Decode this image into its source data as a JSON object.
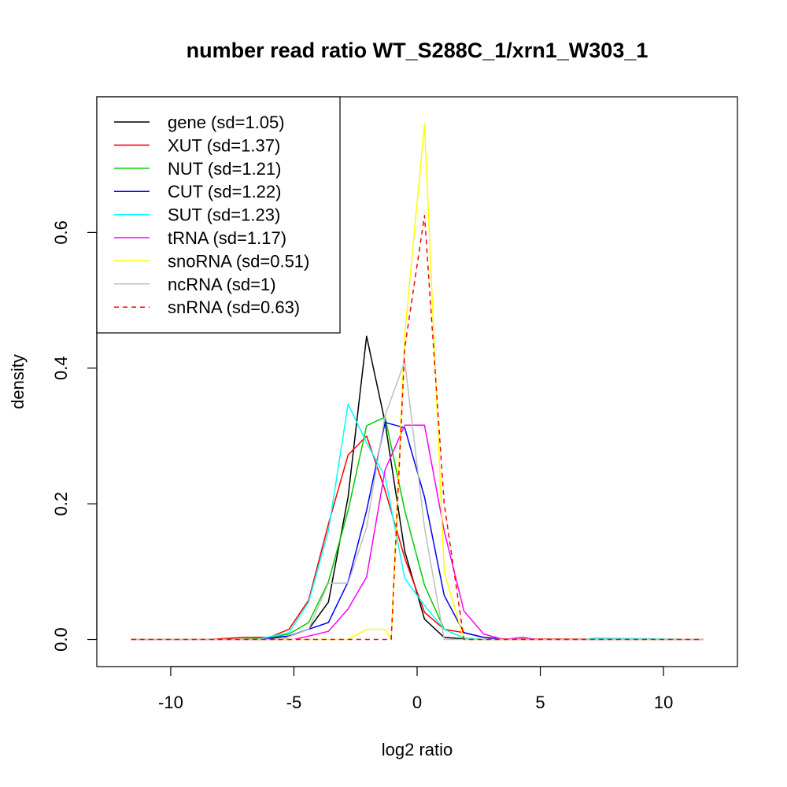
{
  "chart_data": {
    "type": "line",
    "title": "number read ratio WT_S288C_1/xrn1_W303_1",
    "xlabel": "log2 ratio",
    "ylabel": "density",
    "xlim": [
      -13,
      13
    ],
    "ylim": [
      -0.04,
      0.8
    ],
    "xticks": [
      -10,
      -5,
      0,
      5,
      10
    ],
    "xtick_labels": [
      "-10",
      "-5",
      "0",
      "5",
      "10"
    ],
    "yticks": [
      0.0,
      0.2,
      0.4,
      0.6
    ],
    "ytick_labels": [
      "0.0",
      "0.2",
      "0.4",
      "0.6"
    ],
    "grid": false,
    "legend_position": "top-left",
    "series": [
      {
        "name": "gene (sd=1.05)",
        "color": "#000000",
        "dash": "solid",
        "x": [
          -11.6,
          -9.3,
          -7.9,
          -6.3,
          -5.2,
          -4.4,
          -3.6,
          -2.8,
          -2.05,
          -1.3,
          -0.5,
          0.3,
          1.1,
          1.9,
          2.7,
          11.6
        ],
        "y": [
          0.0,
          0.0,
          0.0,
          0.0,
          0.005,
          0.015,
          0.055,
          0.21,
          0.447,
          0.32,
          0.13,
          0.03,
          0.003,
          0.001,
          0.0,
          0.0
        ]
      },
      {
        "name": "XUT (sd=1.37)",
        "color": "#ff0000",
        "dash": "solid",
        "x": [
          -11.6,
          -8.5,
          -7.0,
          -6.0,
          -5.2,
          -4.4,
          -3.6,
          -2.8,
          -2.05,
          -1.3,
          -0.5,
          0.3,
          1.1,
          1.9,
          2.7,
          3.5,
          11.6
        ],
        "y": [
          0.0,
          0.0,
          0.003,
          0.003,
          0.015,
          0.058,
          0.17,
          0.272,
          0.3,
          0.22,
          0.12,
          0.04,
          0.015,
          0.01,
          0.003,
          0.001,
          0.0
        ]
      },
      {
        "name": "NUT (sd=1.21)",
        "color": "#00cd00",
        "dash": "solid",
        "x": [
          -11.6,
          -7.5,
          -6.0,
          -5.2,
          -4.4,
          -3.6,
          -2.8,
          -2.05,
          -1.3,
          -0.5,
          0.3,
          1.1,
          1.9,
          2.7,
          11.6
        ],
        "y": [
          0.0,
          0.0,
          0.002,
          0.008,
          0.025,
          0.085,
          0.19,
          0.315,
          0.328,
          0.19,
          0.08,
          0.015,
          0.002,
          0.0,
          0.0
        ]
      },
      {
        "name": "CUT (sd=1.22)",
        "color": "#0000ff",
        "dash": "solid",
        "x": [
          -11.6,
          -6.5,
          -5.2,
          -4.4,
          -3.6,
          -2.8,
          -2.05,
          -1.3,
          -0.5,
          0.3,
          1.1,
          1.9,
          2.7,
          3.5,
          11.6
        ],
        "y": [
          0.0,
          0.0,
          0.005,
          0.015,
          0.025,
          0.085,
          0.19,
          0.32,
          0.312,
          0.21,
          0.065,
          0.01,
          0.003,
          0.0,
          0.0
        ]
      },
      {
        "name": "SUT (sd=1.23)",
        "color": "#00ffff",
        "dash": "solid",
        "x": [
          -11.6,
          -6.5,
          -5.2,
          -4.4,
          -3.6,
          -2.8,
          -2.05,
          -1.3,
          -0.5,
          0.3,
          1.1,
          1.9,
          2.7,
          6.8,
          7.2,
          11.6
        ],
        "y": [
          0.0,
          0.0,
          0.01,
          0.055,
          0.16,
          0.347,
          0.29,
          0.24,
          0.09,
          0.05,
          0.015,
          0.002,
          0.0,
          0.0,
          0.002,
          0.0
        ]
      },
      {
        "name": "tRNA (sd=1.17)",
        "color": "#ff00ff",
        "dash": "solid",
        "x": [
          -11.6,
          -5.0,
          -4.4,
          -3.6,
          -2.8,
          -2.05,
          -1.3,
          -0.5,
          0.3,
          1.1,
          1.9,
          2.7,
          3.5,
          4.3,
          4.8,
          11.6
        ],
        "y": [
          0.0,
          0.0,
          0.005,
          0.012,
          0.045,
          0.092,
          0.25,
          0.316,
          0.316,
          0.16,
          0.042,
          0.008,
          0.0,
          0.003,
          0.0,
          0.0
        ]
      },
      {
        "name": "snoRNA (sd=0.51)",
        "color": "#ffff00",
        "dash": "solid",
        "x": [
          -11.6,
          -2.8,
          -2.05,
          -1.3,
          -1.05,
          -0.5,
          0.3,
          1.1,
          1.9,
          11.6
        ],
        "y": [
          0.0,
          0.0,
          0.015,
          0.015,
          0.0,
          0.45,
          0.76,
          0.1,
          0.0,
          0.0
        ]
      },
      {
        "name": "ncRNA (sd=1)",
        "color": "#bebebe",
        "dash": "solid",
        "x": [
          -11.6,
          -5.5,
          -4.4,
          -3.6,
          -2.8,
          -2.05,
          -1.3,
          -0.5,
          0.3,
          1.1,
          1.9,
          11.6
        ],
        "y": [
          0.0,
          0.0,
          0.015,
          0.083,
          0.083,
          0.165,
          0.33,
          0.41,
          0.165,
          0.0,
          0.0,
          0.0
        ]
      },
      {
        "name": "snRNA (sd=0.63)",
        "color": "#ff0000",
        "dash": "dashed",
        "x": [
          -11.6,
          -1.2,
          -1.05,
          -0.5,
          0.3,
          1.1,
          1.9,
          11.6
        ],
        "y": [
          0.0,
          0.0,
          0.0,
          0.43,
          0.625,
          0.2,
          0.0,
          0.0
        ]
      }
    ]
  }
}
